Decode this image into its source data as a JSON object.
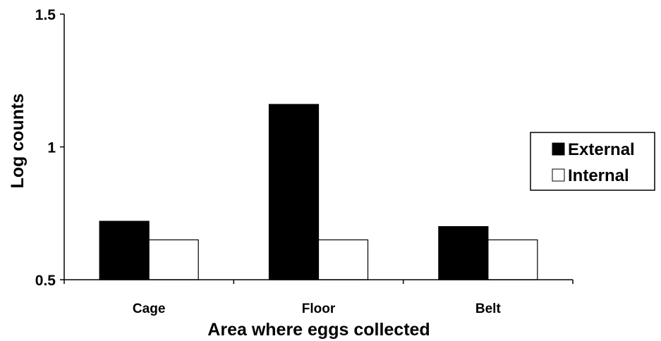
{
  "chart_data": {
    "type": "bar",
    "title": "",
    "xlabel": "Area where eggs collected",
    "ylabel": "Log counts",
    "categories": [
      "Cage",
      "Floor",
      "Belt"
    ],
    "series": [
      {
        "name": "External",
        "values": [
          0.72,
          1.16,
          0.7
        ],
        "color": "#000000"
      },
      {
        "name": "Internal",
        "values": [
          0.65,
          0.65,
          0.65
        ],
        "color": "#ffffff"
      }
    ],
    "ylim": [
      0.5,
      1.5
    ],
    "yticks": [
      "0.5",
      "1",
      "1.5"
    ],
    "grid": false,
    "legend_position": "right"
  }
}
